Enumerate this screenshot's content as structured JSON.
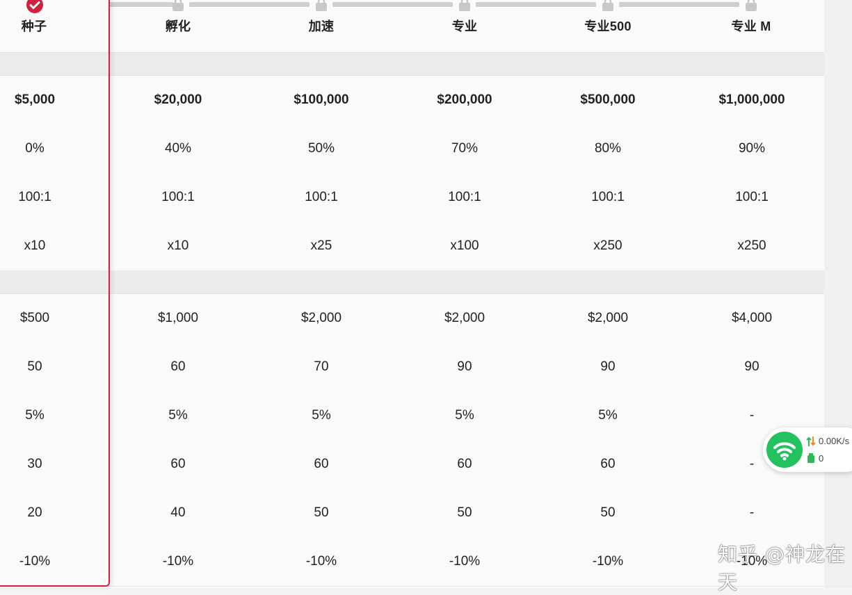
{
  "plans": [
    "种子",
    "孵化",
    "加速",
    "专业",
    "专业500",
    "专业 M"
  ],
  "rows": [
    {
      "values": [
        "$5,000",
        "$20,000",
        "$100,000",
        "$200,000",
        "$500,000",
        "$1,000,000"
      ]
    },
    {
      "values": [
        "0%",
        "40%",
        "50%",
        "70%",
        "80%",
        "90%"
      ]
    },
    {
      "values": [
        "100:1",
        "100:1",
        "100:1",
        "100:1",
        "100:1",
        "100:1"
      ]
    },
    {
      "values": [
        "x10",
        "x10",
        "x25",
        "x100",
        "x250",
        "x250"
      ]
    },
    {
      "values": [
        "$500",
        "$1,000",
        "$2,000",
        "$2,000",
        "$2,000",
        "$4,000"
      ]
    },
    {
      "values": [
        "50",
        "60",
        "70",
        "90",
        "90",
        "90"
      ]
    },
    {
      "values": [
        "5%",
        "5%",
        "5%",
        "5%",
        "5%",
        "-"
      ]
    },
    {
      "values": [
        "30",
        "60",
        "60",
        "60",
        "60",
        "-"
      ]
    },
    {
      "values": [
        "20",
        "40",
        "50",
        "50",
        "50",
        "-"
      ]
    },
    {
      "values": [
        "-10%",
        "-10%",
        "-10%",
        "-10%",
        "-10%",
        "-10%"
      ]
    }
  ],
  "selected_plan": "种子",
  "accent_color": "#d0213f",
  "icons": {
    "selected": "check-circle-icon",
    "locked": "lock-icon"
  },
  "net_widget": {
    "speed": "0.00K/s",
    "count": "0"
  },
  "watermark": "知乎 @神龙在天"
}
